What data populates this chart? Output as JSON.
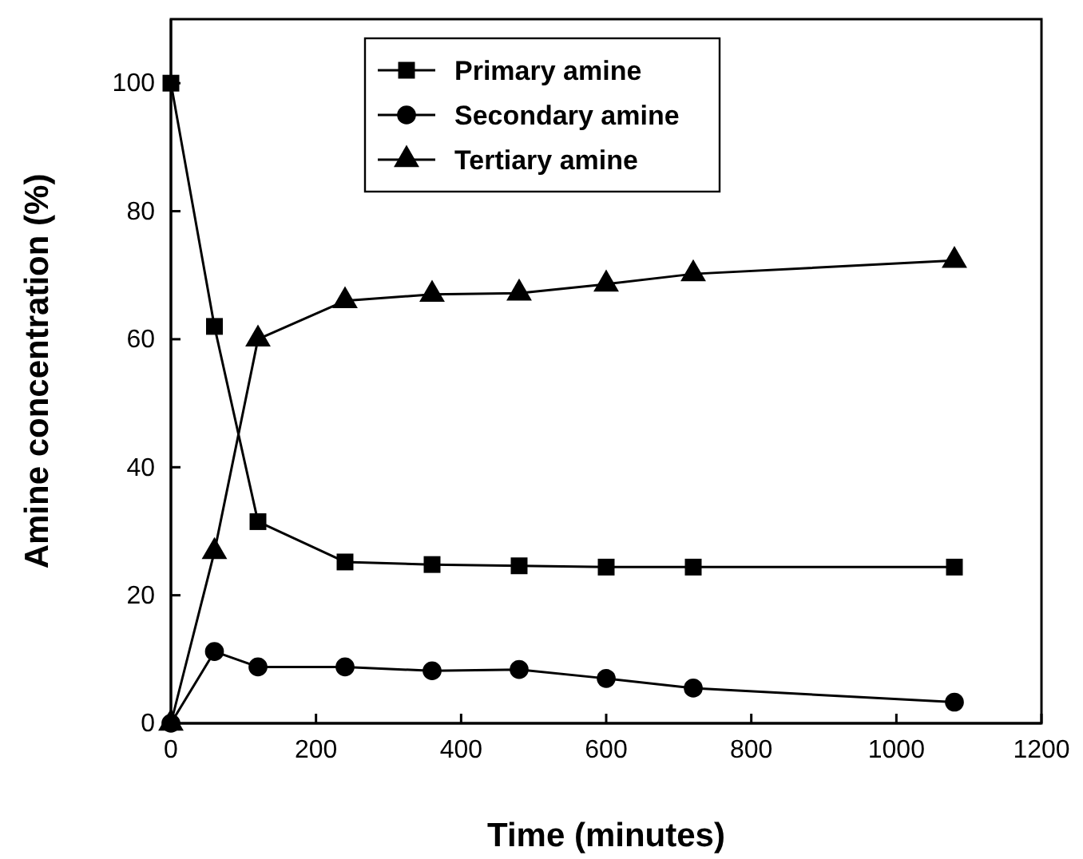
{
  "chart_data": {
    "type": "line",
    "xlabel": "Time (minutes)",
    "ylabel": "Amine concentration (%)",
    "x": [
      0,
      60,
      120,
      240,
      360,
      480,
      600,
      720,
      1080
    ],
    "series": [
      {
        "name": "Primary amine",
        "color": "#000000",
        "marker": "square",
        "values": [
          100,
          62,
          31.5,
          25.2,
          24.8,
          24.6,
          24.4,
          24.4,
          24.4
        ]
      },
      {
        "name": "Secondary amine",
        "color": "#000000",
        "marker": "circle",
        "values": [
          0,
          11.2,
          8.8,
          8.8,
          8.2,
          8.4,
          7.0,
          5.5,
          3.3
        ]
      },
      {
        "name": "Tertiary amine",
        "color": "#000000",
        "marker": "triangle",
        "values": [
          0,
          26.8,
          60,
          66,
          67,
          67.2,
          68.6,
          70.2,
          72.3
        ]
      }
    ],
    "xlim": [
      0,
      1200
    ],
    "xticks": [
      0,
      200,
      400,
      600,
      800,
      1000,
      1200
    ],
    "ylim": [
      0,
      110
    ],
    "yticks": [
      0,
      20,
      40,
      60,
      80,
      100
    ],
    "grid": false,
    "legend": "top",
    "line_style": "solid"
  }
}
